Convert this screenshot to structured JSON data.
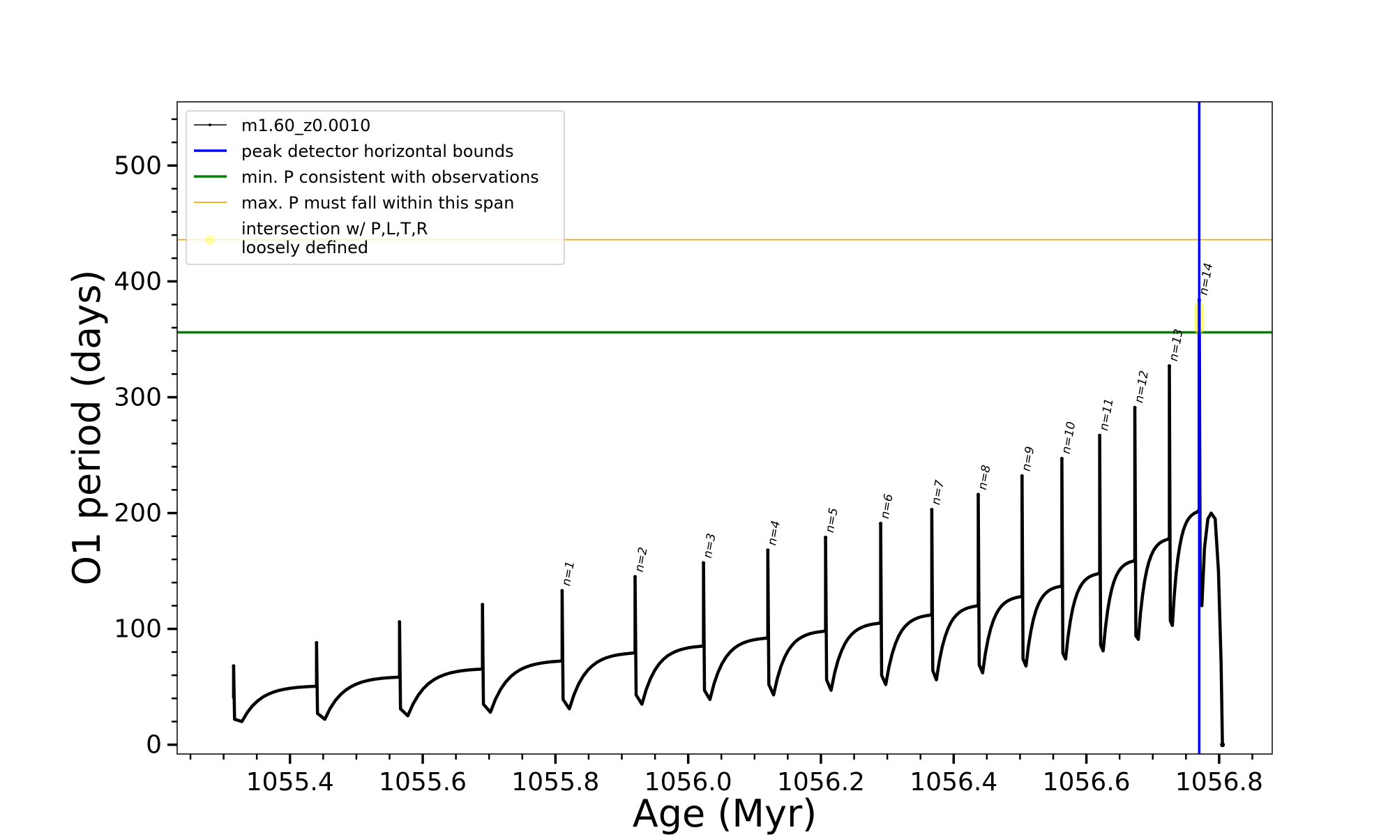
{
  "chart_data": {
    "type": "line",
    "title": "",
    "xlabel": "Age (Myr)",
    "ylabel": "O1 period (days)",
    "xlim": [
      1055.23,
      1056.88
    ],
    "ylim": [
      -8,
      555
    ],
    "x_ticks": [
      1055.4,
      1055.6,
      1055.8,
      1056.0,
      1056.2,
      1056.4,
      1056.6,
      1056.8
    ],
    "x_tick_labels": [
      "1055.4",
      "1055.6",
      "1055.8",
      "1056.0",
      "1056.2",
      "1056.4",
      "1056.6",
      "1056.8"
    ],
    "y_ticks": [
      0,
      100,
      200,
      300,
      400,
      500
    ],
    "y_tick_labels": [
      "0",
      "100",
      "200",
      "300",
      "400",
      "500"
    ],
    "grid": false,
    "legend_position": "top-left",
    "legend": [
      {
        "label": "m1.60_z0.0010",
        "style": "line-marker",
        "color": "#000000"
      },
      {
        "label": "peak detector horizontal bounds",
        "style": "line",
        "color": "#0000ff"
      },
      {
        "label": "min. P consistent with observations",
        "style": "line",
        "color": "#008000"
      },
      {
        "label": "max. P must fall within this span",
        "style": "line",
        "color": "#ffa500"
      },
      {
        "label": "intersection w/ P,L,T,R\nloosely defined",
        "style": "dot",
        "color": "#ffff00"
      }
    ],
    "series": [
      {
        "name": "m1.60_z0.0010",
        "color": "#000000",
        "pulses": [
          {
            "x": 1055.315,
            "base": 40,
            "peak": 68,
            "drop": 22,
            "min": 20,
            "plateau": 51
          },
          {
            "x": 1055.44,
            "base": 51,
            "peak": 88,
            "drop": 27,
            "min": 22,
            "plateau": 59
          },
          {
            "x": 1055.565,
            "base": 59,
            "peak": 106,
            "drop": 31,
            "min": 25,
            "plateau": 66
          },
          {
            "x": 1055.69,
            "base": 66,
            "peak": 121,
            "drop": 35,
            "min": 28,
            "plateau": 73
          },
          {
            "x": 1055.81,
            "base": 73,
            "peak": 133,
            "drop": 39,
            "min": 31,
            "plateau": 80,
            "label": "n=1"
          },
          {
            "x": 1055.92,
            "base": 80,
            "peak": 145,
            "drop": 43,
            "min": 35,
            "plateau": 86,
            "label": "n=2"
          },
          {
            "x": 1056.023,
            "base": 86,
            "peak": 157,
            "drop": 47,
            "min": 39,
            "plateau": 93,
            "label": "n=3"
          },
          {
            "x": 1056.12,
            "base": 93,
            "peak": 168,
            "drop": 52,
            "min": 43,
            "plateau": 99,
            "label": "n=4"
          },
          {
            "x": 1056.207,
            "base": 99,
            "peak": 179,
            "drop": 56,
            "min": 47,
            "plateau": 106,
            "label": "n=5"
          },
          {
            "x": 1056.29,
            "base": 106,
            "peak": 191,
            "drop": 60,
            "min": 52,
            "plateau": 113,
            "label": "n=6"
          },
          {
            "x": 1056.367,
            "base": 113,
            "peak": 203,
            "drop": 64,
            "min": 56,
            "plateau": 121,
            "label": "n=7"
          },
          {
            "x": 1056.437,
            "base": 121,
            "peak": 216,
            "drop": 69,
            "min": 62,
            "plateau": 129,
            "label": "n=8"
          },
          {
            "x": 1056.503,
            "base": 129,
            "peak": 232,
            "drop": 74,
            "min": 68,
            "plateau": 138,
            "label": "n=9"
          },
          {
            "x": 1056.563,
            "base": 138,
            "peak": 247,
            "drop": 79,
            "min": 74,
            "plateau": 149,
            "label": "n=10"
          },
          {
            "x": 1056.62,
            "base": 149,
            "peak": 267,
            "drop": 86,
            "min": 81,
            "plateau": 160,
            "label": "n=11"
          },
          {
            "x": 1056.673,
            "base": 160,
            "peak": 291,
            "drop": 94,
            "min": 91,
            "plateau": 179,
            "label": "n=12"
          },
          {
            "x": 1056.725,
            "base": 179,
            "peak": 327,
            "drop": 107,
            "min": 103,
            "plateau": 203,
            "label": "n=13"
          },
          {
            "x": 1056.77,
            "base": 203,
            "peak": 384,
            "drop": 125,
            "min": 120,
            "plateau": 200,
            "label": "n=14"
          }
        ],
        "end_x": 1056.805,
        "end_y": 0
      }
    ],
    "vlines": [
      {
        "x": 1056.77,
        "color": "#0000ff",
        "label": "peak detector horizontal bounds"
      }
    ],
    "hlines": [
      {
        "y": 356,
        "color": "#008000",
        "label": "min. P consistent with observations"
      },
      {
        "y": 436,
        "color": "#ffa500",
        "label": "max. P must fall within this span"
      }
    ],
    "highlight": {
      "x": 1056.77,
      "y_range": [
        355,
        382
      ],
      "color": "#ffff00",
      "label": "intersection w/ P,L,T,R loosely defined"
    }
  }
}
